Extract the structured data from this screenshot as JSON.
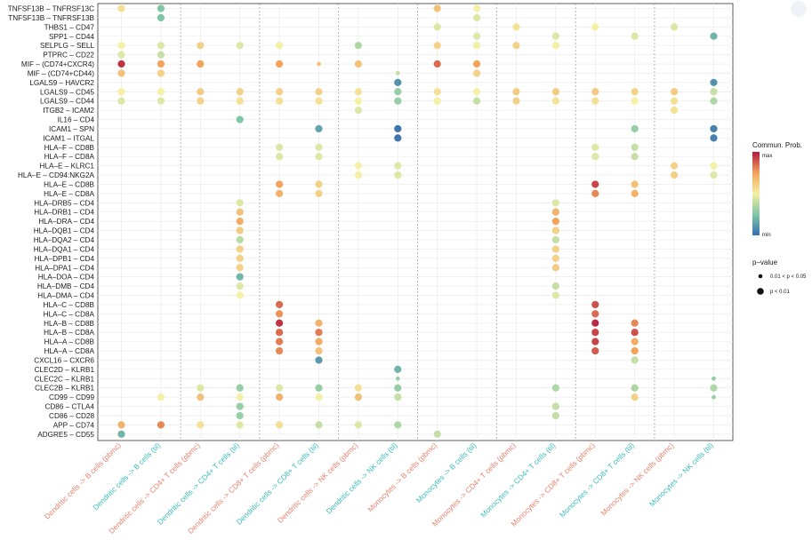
{
  "chart_data": {
    "type": "scatter",
    "title": "",
    "xlabel": "",
    "ylabel": "",
    "color_legend": {
      "title": "Commun. Prob.",
      "max_label": "max",
      "min_label": "min"
    },
    "size_legend": {
      "title": "p–value",
      "items": [
        "0.01 < p < 0.05",
        "p < 0.01"
      ]
    },
    "x_categories": [
      {
        "label": "Dendritic cells -> B cells (pbmc)",
        "color": "#e8836f"
      },
      {
        "label": "Dendritic cells -> B cells (til)",
        "color": "#3dbdb8"
      },
      {
        "label": "Dendritic cells -> CD4+ T cells (pbmc)",
        "color": "#e8836f"
      },
      {
        "label": "Dendritic cells -> CD4+ T cells (til)",
        "color": "#3dbdb8"
      },
      {
        "label": "Dendritic cells -> CD8+ T cells (pbmc)",
        "color": "#e8836f"
      },
      {
        "label": "Dendritic cells -> CD8+ T cells (til)",
        "color": "#3dbdb8"
      },
      {
        "label": "Dendritic cells -> NK cells (pbmc)",
        "color": "#e8836f"
      },
      {
        "label": "Dendritic cells -> NK cells (til)",
        "color": "#3dbdb8"
      },
      {
        "label": "Monocytes -> B cells (pbmc)",
        "color": "#e8836f"
      },
      {
        "label": "Monocytes -> B cells (til)",
        "color": "#3dbdb8"
      },
      {
        "label": "Monocytes -> CD4+ T cells (pbmc)",
        "color": "#e8836f"
      },
      {
        "label": "Monocytes -> CD4+ T cells (til)",
        "color": "#3dbdb8"
      },
      {
        "label": "Monocytes -> CD8+ T cells (pbmc)",
        "color": "#e8836f"
      },
      {
        "label": "Monocytes -> CD8+ T cells (til)",
        "color": "#3dbdb8"
      },
      {
        "label": "Monocytes -> NK cells (pbmc)",
        "color": "#e8836f"
      },
      {
        "label": "Monocytes -> NK cells (til)",
        "color": "#3dbdb8"
      }
    ],
    "y_categories": [
      "TNFSF13B – TNFRSF13C",
      "TNFSF13B – TNFRSF13B",
      "THBS1 – CD47",
      "SPP1 – CD44",
      "SELPLG – SELL",
      "PTPRC – CD22",
      "MIF – (CD74+CXCR4)",
      "MIF – (CD74+CD44)",
      "LGALS9 – HAVCR2",
      "LGALS9 – CD45",
      "LGALS9 – CD44",
      "ITGB2 – ICAM2",
      "IL16 – CD4",
      "ICAM1 – SPN",
      "ICAM1 – ITGAL",
      "HLA–F – CD8B",
      "HLA–F – CD8A",
      "HLA–E – KLRC1",
      "HLA–E – CD94:NKG2A",
      "HLA–E – CD8B",
      "HLA–E – CD8A",
      "HLA–DRB5 – CD4",
      "HLA–DRB1 – CD4",
      "HLA–DRA – CD4",
      "HLA–DQB1 – CD4",
      "HLA–DQA2 – CD4",
      "HLA–DQA1 – CD4",
      "HLA–DPB1 – CD4",
      "HLA–DPA1 – CD4",
      "HLA–DOA – CD4",
      "HLA–DMB – CD4",
      "HLA–DMA – CD4",
      "HLA–C – CD8B",
      "HLA–C – CD8A",
      "HLA–B – CD8B",
      "HLA–B – CD8A",
      "HLA–A – CD8B",
      "HLA–A – CD8A",
      "CXCL16 – CXCR6",
      "CLEC2D – KLRB1",
      "CLEC2C – KLRB1",
      "CLEC2B – KLRB1",
      "CD99 – CD99",
      "CD86 – CTLA4",
      "CD86 – CD28",
      "APP – CD74",
      "ADGRE5 – CD55"
    ],
    "point_fields": [
      "x_index",
      "y_index",
      "prob_0_to_1",
      "pvalue_class_1or2"
    ],
    "points": [
      [
        0,
        0,
        0.55,
        2
      ],
      [
        1,
        0,
        0.25,
        2
      ],
      [
        8,
        0,
        0.65,
        2
      ],
      [
        9,
        0,
        0.5,
        2
      ],
      [
        1,
        1,
        0.25,
        2
      ],
      [
        9,
        1,
        0.45,
        2
      ],
      [
        8,
        2,
        0.45,
        2
      ],
      [
        10,
        2,
        0.55,
        2
      ],
      [
        12,
        2,
        0.5,
        2
      ],
      [
        14,
        2,
        0.45,
        2
      ],
      [
        9,
        3,
        0.45,
        2
      ],
      [
        11,
        3,
        0.45,
        2
      ],
      [
        13,
        3,
        0.45,
        2
      ],
      [
        15,
        3,
        0.2,
        2
      ],
      [
        0,
        4,
        0.5,
        2
      ],
      [
        1,
        4,
        0.45,
        2
      ],
      [
        2,
        4,
        0.6,
        2
      ],
      [
        3,
        4,
        0.45,
        2
      ],
      [
        4,
        4,
        0.5,
        2
      ],
      [
        6,
        4,
        0.35,
        2
      ],
      [
        8,
        4,
        0.6,
        2
      ],
      [
        9,
        4,
        0.5,
        2
      ],
      [
        10,
        4,
        0.6,
        2
      ],
      [
        11,
        4,
        0.5,
        2
      ],
      [
        0,
        5,
        0.45,
        2
      ],
      [
        1,
        5,
        0.4,
        2
      ],
      [
        0,
        6,
        0.95,
        2
      ],
      [
        1,
        6,
        0.75,
        2
      ],
      [
        2,
        6,
        0.75,
        2
      ],
      [
        4,
        6,
        0.75,
        2
      ],
      [
        5,
        6,
        0.65,
        1
      ],
      [
        6,
        6,
        0.65,
        2
      ],
      [
        8,
        6,
        0.85,
        2
      ],
      [
        9,
        6,
        0.75,
        2
      ],
      [
        0,
        7,
        0.65,
        2
      ],
      [
        1,
        7,
        0.6,
        2
      ],
      [
        7,
        7,
        0.4,
        1
      ],
      [
        9,
        7,
        0.6,
        2
      ],
      [
        7,
        8,
        0.1,
        2
      ],
      [
        15,
        8,
        0.1,
        2
      ],
      [
        0,
        9,
        0.5,
        2
      ],
      [
        1,
        9,
        0.5,
        2
      ],
      [
        2,
        9,
        0.62,
        2
      ],
      [
        3,
        9,
        0.6,
        2
      ],
      [
        4,
        9,
        0.6,
        2
      ],
      [
        5,
        9,
        0.6,
        2
      ],
      [
        6,
        9,
        0.55,
        2
      ],
      [
        7,
        9,
        0.3,
        2
      ],
      [
        8,
        9,
        0.55,
        2
      ],
      [
        9,
        9,
        0.5,
        2
      ],
      [
        10,
        9,
        0.62,
        2
      ],
      [
        11,
        9,
        0.62,
        2
      ],
      [
        12,
        9,
        0.62,
        2
      ],
      [
        13,
        9,
        0.6,
        2
      ],
      [
        14,
        9,
        0.62,
        2
      ],
      [
        15,
        9,
        0.4,
        2
      ],
      [
        0,
        10,
        0.45,
        2
      ],
      [
        1,
        10,
        0.45,
        2
      ],
      [
        2,
        10,
        0.6,
        2
      ],
      [
        3,
        10,
        0.55,
        2
      ],
      [
        4,
        10,
        0.55,
        2
      ],
      [
        5,
        10,
        0.55,
        2
      ],
      [
        6,
        10,
        0.5,
        2
      ],
      [
        7,
        10,
        0.3,
        2
      ],
      [
        8,
        10,
        0.5,
        2
      ],
      [
        9,
        10,
        0.4,
        2
      ],
      [
        10,
        10,
        0.6,
        2
      ],
      [
        11,
        10,
        0.55,
        2
      ],
      [
        12,
        10,
        0.55,
        2
      ],
      [
        13,
        10,
        0.5,
        2
      ],
      [
        14,
        10,
        0.55,
        2
      ],
      [
        15,
        10,
        0.35,
        2
      ],
      [
        6,
        11,
        0.45,
        2
      ],
      [
        14,
        11,
        0.55,
        2
      ],
      [
        3,
        12,
        0.25,
        2
      ],
      [
        5,
        13,
        0.15,
        2
      ],
      [
        7,
        13,
        0.02,
        2
      ],
      [
        13,
        13,
        0.3,
        2
      ],
      [
        15,
        13,
        0.05,
        2
      ],
      [
        7,
        14,
        0.02,
        2
      ],
      [
        15,
        14,
        0.05,
        2
      ],
      [
        4,
        15,
        0.45,
        2
      ],
      [
        5,
        15,
        0.45,
        2
      ],
      [
        12,
        15,
        0.45,
        2
      ],
      [
        13,
        15,
        0.4,
        2
      ],
      [
        4,
        16,
        0.45,
        2
      ],
      [
        5,
        16,
        0.45,
        2
      ],
      [
        12,
        16,
        0.45,
        2
      ],
      [
        13,
        16,
        0.4,
        2
      ],
      [
        6,
        17,
        0.5,
        2
      ],
      [
        7,
        17,
        0.45,
        2
      ],
      [
        14,
        17,
        0.6,
        2
      ],
      [
        15,
        17,
        0.5,
        2
      ],
      [
        6,
        18,
        0.5,
        2
      ],
      [
        7,
        18,
        0.45,
        2
      ],
      [
        14,
        18,
        0.6,
        2
      ],
      [
        15,
        18,
        0.45,
        2
      ],
      [
        4,
        19,
        0.75,
        2
      ],
      [
        5,
        19,
        0.6,
        2
      ],
      [
        12,
        19,
        0.92,
        2
      ],
      [
        13,
        19,
        0.65,
        2
      ],
      [
        4,
        20,
        0.7,
        2
      ],
      [
        5,
        20,
        0.6,
        2
      ],
      [
        12,
        20,
        0.8,
        2
      ],
      [
        13,
        20,
        0.7,
        2
      ],
      [
        3,
        21,
        0.45,
        2
      ],
      [
        11,
        21,
        0.45,
        2
      ],
      [
        3,
        22,
        0.65,
        2
      ],
      [
        11,
        22,
        0.7,
        2
      ],
      [
        3,
        23,
        0.72,
        2
      ],
      [
        11,
        23,
        0.75,
        2
      ],
      [
        3,
        24,
        0.62,
        2
      ],
      [
        11,
        24,
        0.6,
        2
      ],
      [
        3,
        25,
        0.38,
        2
      ],
      [
        11,
        25,
        0.4,
        2
      ],
      [
        3,
        26,
        0.6,
        2
      ],
      [
        11,
        26,
        0.6,
        2
      ],
      [
        3,
        27,
        0.6,
        2
      ],
      [
        11,
        27,
        0.6,
        2
      ],
      [
        3,
        28,
        0.6,
        2
      ],
      [
        11,
        28,
        0.62,
        2
      ],
      [
        3,
        29,
        0.2,
        2
      ],
      [
        3,
        30,
        0.45,
        2
      ],
      [
        11,
        30,
        0.4,
        2
      ],
      [
        3,
        31,
        0.5,
        2
      ],
      [
        11,
        31,
        0.45,
        2
      ],
      [
        4,
        32,
        0.85,
        2
      ],
      [
        12,
        32,
        0.9,
        2
      ],
      [
        4,
        33,
        0.78,
        2
      ],
      [
        12,
        33,
        0.85,
        2
      ],
      [
        4,
        34,
        0.95,
        2
      ],
      [
        5,
        34,
        0.7,
        2
      ],
      [
        12,
        34,
        0.97,
        2
      ],
      [
        13,
        34,
        0.8,
        2
      ],
      [
        4,
        35,
        0.85,
        2
      ],
      [
        5,
        35,
        0.82,
        2
      ],
      [
        12,
        35,
        0.92,
        2
      ],
      [
        13,
        35,
        0.9,
        2
      ],
      [
        4,
        36,
        0.82,
        2
      ],
      [
        5,
        36,
        0.72,
        2
      ],
      [
        12,
        36,
        0.92,
        2
      ],
      [
        13,
        36,
        0.72,
        2
      ],
      [
        4,
        37,
        0.8,
        2
      ],
      [
        5,
        37,
        0.65,
        2
      ],
      [
        12,
        37,
        0.88,
        2
      ],
      [
        13,
        37,
        0.75,
        2
      ],
      [
        5,
        38,
        0.12,
        2
      ],
      [
        13,
        38,
        0.4,
        2
      ],
      [
        7,
        39,
        0.2,
        2
      ],
      [
        7,
        40,
        0.3,
        1
      ],
      [
        15,
        40,
        0.3,
        1
      ],
      [
        2,
        41,
        0.45,
        2
      ],
      [
        3,
        41,
        0.3,
        2
      ],
      [
        4,
        41,
        0.45,
        2
      ],
      [
        5,
        41,
        0.3,
        2
      ],
      [
        6,
        41,
        0.55,
        2
      ],
      [
        7,
        41,
        0.3,
        2
      ],
      [
        11,
        41,
        0.35,
        2
      ],
      [
        13,
        41,
        0.35,
        2
      ],
      [
        15,
        41,
        0.35,
        2
      ],
      [
        1,
        42,
        0.5,
        2
      ],
      [
        2,
        42,
        0.65,
        2
      ],
      [
        3,
        42,
        0.5,
        2
      ],
      [
        4,
        42,
        0.7,
        2
      ],
      [
        5,
        42,
        0.5,
        2
      ],
      [
        6,
        42,
        0.65,
        2
      ],
      [
        7,
        42,
        0.4,
        2
      ],
      [
        13,
        42,
        0.6,
        2
      ],
      [
        15,
        42,
        0.3,
        1
      ],
      [
        3,
        43,
        0.3,
        2
      ],
      [
        11,
        43,
        0.4,
        2
      ],
      [
        3,
        44,
        0.3,
        2
      ],
      [
        11,
        44,
        0.4,
        2
      ],
      [
        0,
        45,
        0.7,
        2
      ],
      [
        1,
        45,
        0.8,
        2
      ],
      [
        2,
        45,
        0.55,
        2
      ],
      [
        3,
        45,
        0.45,
        2
      ],
      [
        4,
        45,
        0.55,
        2
      ],
      [
        5,
        45,
        0.4,
        2
      ],
      [
        6,
        45,
        0.45,
        2
      ],
      [
        7,
        45,
        0.35,
        2
      ],
      [
        0,
        46,
        0.2,
        2
      ],
      [
        8,
        46,
        0.4,
        2
      ]
    ]
  }
}
